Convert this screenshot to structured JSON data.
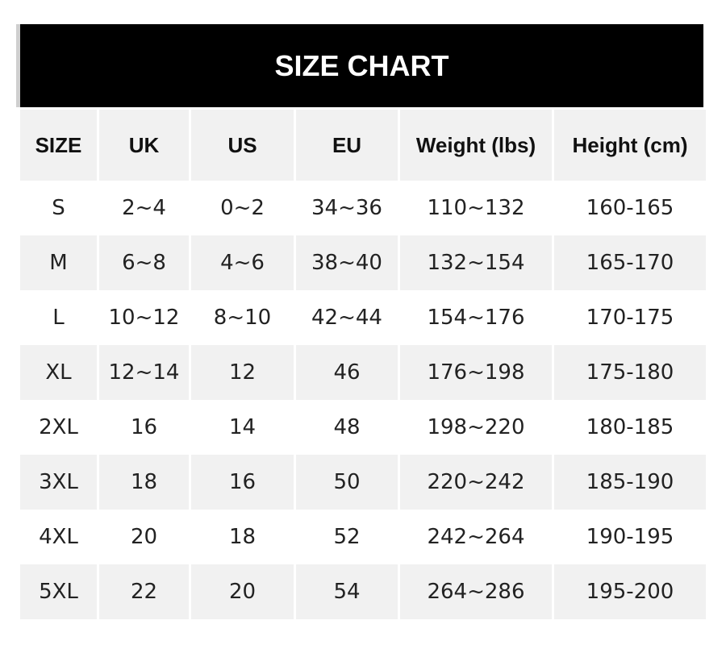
{
  "title": "SIZE CHART",
  "columns": [
    "SIZE",
    "UK",
    "US",
    "EU",
    "Weight (lbs)",
    "Height (cm)"
  ],
  "rows": [
    [
      "S",
      "2~4",
      "0~2",
      "34~36",
      "110~132",
      "160-165"
    ],
    [
      "M",
      "6~8",
      "4~6",
      "38~40",
      "132~154",
      "165-170"
    ],
    [
      "L",
      "10~12",
      "8~10",
      "42~44",
      "154~176",
      "170-175"
    ],
    [
      "XL",
      "12~14",
      "12",
      "46",
      "176~198",
      "175-180"
    ],
    [
      "2XL",
      "16",
      "14",
      "48",
      "198~220",
      "180-185"
    ],
    [
      "3XL",
      "18",
      "16",
      "50",
      "220~242",
      "185-190"
    ],
    [
      "4XL",
      "20",
      "18",
      "52",
      "242~264",
      "190-195"
    ],
    [
      "5XL",
      "22",
      "20",
      "54",
      "264~286",
      "195-200"
    ]
  ],
  "colors": {
    "header_bg": "#000000",
    "stripe": "#f1f1f1"
  }
}
